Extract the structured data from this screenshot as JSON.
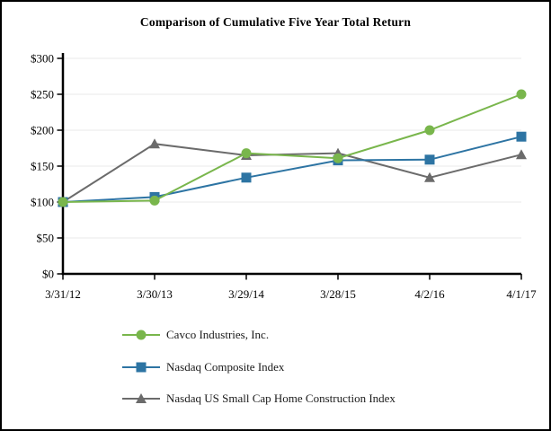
{
  "figure": {
    "border_color": "#000000",
    "background_color": "#ffffff"
  },
  "chart_data": {
    "type": "line",
    "title": "Comparison of Cumulative Five Year Total Return",
    "x_categories": [
      "3/31/12",
      "3/30/13",
      "3/29/14",
      "3/28/15",
      "4/2/16",
      "4/1/17"
    ],
    "y_tick_labels": [
      "$0",
      "$50",
      "$100",
      "$150",
      "$200",
      "$250",
      "$300"
    ],
    "y_tick_values": [
      0,
      50,
      100,
      150,
      200,
      250,
      300
    ],
    "ylim": [
      0,
      300
    ],
    "xlabel": "",
    "ylabel": "",
    "grid": true,
    "legend_position": "bottom-left",
    "axis_color": "#000000",
    "gridline_color": "#e8e8e8",
    "series": [
      {
        "name": "Cavco Industries, Inc.",
        "marker": "circle",
        "color": "#79b64c",
        "values": [
          100,
          102,
          168,
          161,
          200,
          250
        ]
      },
      {
        "name": "Nasdaq Composite Index",
        "marker": "square",
        "color": "#2d74a3",
        "values": [
          100,
          107,
          134,
          158,
          159,
          191
        ]
      },
      {
        "name": "Nasdaq US Small Cap Home Construction Index",
        "marker": "triangle",
        "color": "#6b6b6b",
        "values": [
          100,
          181,
          165,
          168,
          134,
          166
        ]
      }
    ]
  }
}
